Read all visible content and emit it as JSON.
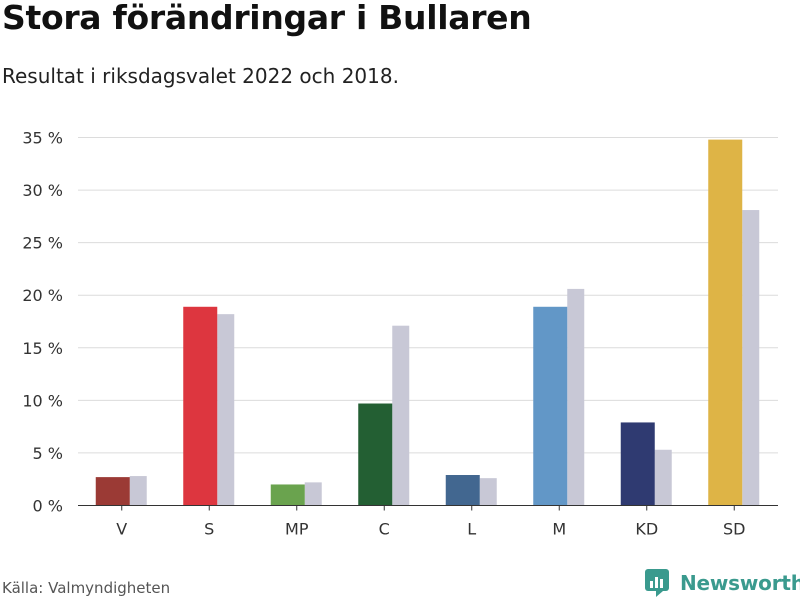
{
  "header": {
    "title": "Stora förändringar i Bullaren",
    "subtitle": "Resultat i riksdagsvalet 2022 och 2018."
  },
  "footer": {
    "source": "Källa: Valmyndigheten",
    "brand": "Newsworthy"
  },
  "chart_data": {
    "type": "bar",
    "categories": [
      "V",
      "S",
      "MP",
      "C",
      "L",
      "M",
      "KD",
      "SD"
    ],
    "series": [
      {
        "values": [
          2.7,
          18.9,
          2.0,
          9.7,
          2.9,
          18.9,
          7.9,
          34.8
        ]
      },
      {
        "values": [
          2.8,
          18.2,
          2.2,
          17.1,
          2.6,
          20.6,
          5.3,
          28.1
        ]
      }
    ],
    "colors_2022": [
      "#9b3a35",
      "#dd363f",
      "#6aa34e",
      "#235f33",
      "#426790",
      "#6297c7",
      "#2f3a71",
      "#deb446"
    ],
    "color_2018": "#c8c8d6",
    "yticks": [
      "0 %",
      "5 %",
      "10 %",
      "15 %",
      "20 %",
      "25 %",
      "30 %",
      "35 %"
    ],
    "ylim": [
      0,
      35
    ],
    "grid": true,
    "legend": "none"
  }
}
